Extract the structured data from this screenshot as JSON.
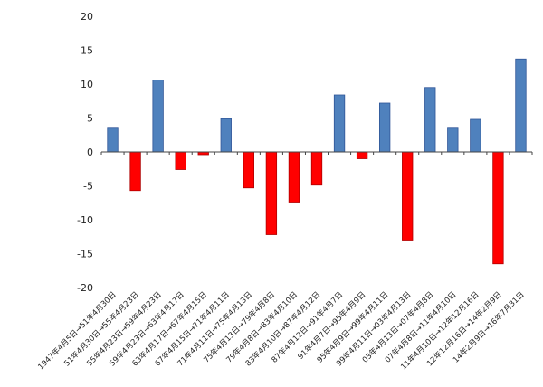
{
  "chart_data": {
    "type": "bar",
    "title": "",
    "xlabel": "",
    "ylabel": "",
    "ylim": [
      -20,
      20
    ],
    "yticks": [
      20,
      15,
      10,
      5,
      0,
      -5,
      -10,
      -15,
      -20
    ],
    "grid": false,
    "legend": "none",
    "colors": {
      "positive": "#4f81bd",
      "negative": "#ff0000",
      "positive_edge": "#2f5597",
      "negative_edge": "#b00000"
    },
    "categories": [
      "1947年4月5日→51年4月30日",
      "51年4月30日→55年4月23日",
      "55年4月23日→59年4月23日",
      "59年4月23日→63年4月17日",
      "63年4月17日→67年4月15日",
      "67年4月15日→71年4月11日",
      "71年4月11日→75年4月13日",
      "75年4月13日→79年4月8日",
      "79年4月8日→83年4月10日",
      "83年4月10日→87年4月12日",
      "87年4月12日→91年4月7日",
      "91年4月7日→95年4月9日",
      "95年4月9日→99年4月11日",
      "99年4月11日→03年4月13日",
      "03年4月13日→07年4月8日",
      "07年4月8日→11年4月10日",
      "11年4月10日→12年12月16日",
      "12年12月16日→14年2月9日",
      "14年2月9日→16年7月31日"
    ],
    "values": [
      3.5,
      -5.7,
      10.6,
      -2.6,
      -0.4,
      4.9,
      -5.3,
      -12.2,
      -7.4,
      -4.9,
      8.4,
      -1.0,
      7.2,
      -13.0,
      9.5,
      3.5,
      4.8,
      -16.5,
      13.7
    ]
  }
}
